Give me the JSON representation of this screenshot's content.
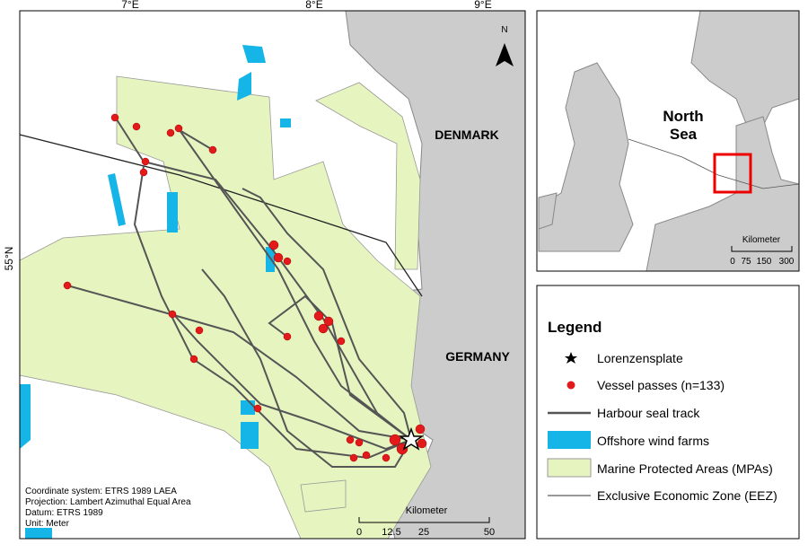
{
  "map": {
    "lon_labels": [
      "7°E",
      "8°E",
      "9°E"
    ],
    "lat_label": "55°N",
    "north_arrow": "N",
    "country_labels": [
      "DENMARK",
      "GERMANY"
    ],
    "notes": [
      "Coordinate system: ETRS 1989 LAEA",
      "Projection: Lambert Azimuthal Equal Area",
      "Datum: ETRS 1989",
      "Unit: Meter"
    ],
    "scale": {
      "title": "Kilometer",
      "ticks": [
        "0",
        "12.5",
        "25",
        "50"
      ]
    },
    "inset": {
      "label_lines": [
        "North",
        "Sea"
      ],
      "scale_title": "Kilometer",
      "scale_ticks": [
        "0",
        "75",
        "150",
        "300"
      ]
    },
    "legend": {
      "title": "Legend",
      "items": [
        "Lorenzensplate",
        "Vessel passes (n=133)",
        "Harbour seal track",
        "Offshore wind farms",
        "Marine Protected Areas (MPAs)",
        "Exclusive Economic Zone (EEZ)"
      ]
    }
  }
}
